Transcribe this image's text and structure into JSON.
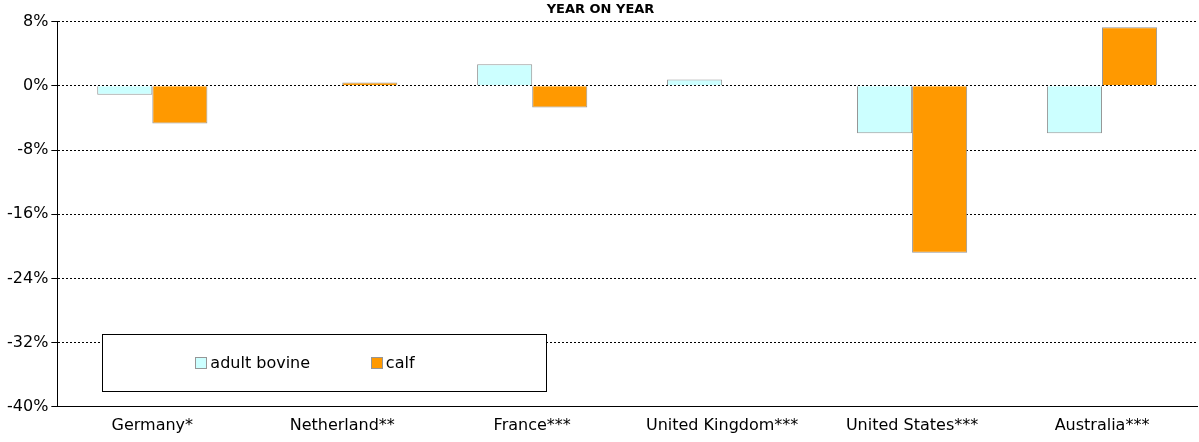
{
  "chart_data": {
    "type": "bar",
    "title": "YEAR ON YEAR",
    "categories": [
      "Germany*",
      "Netherland**",
      "France***",
      "United Kingdom***",
      "United States***",
      "Australia***"
    ],
    "series": [
      {
        "name": "adult bovine",
        "color": "#ccffff",
        "values": [
          -1.1,
          0,
          2.7,
          0.8,
          -5.9,
          -5.9
        ]
      },
      {
        "name": "calf",
        "color": "#ff9900",
        "values": [
          -4.7,
          0.4,
          -2.7,
          0,
          -20.8,
          7.3
        ]
      }
    ],
    "ylim": [
      -40,
      8
    ],
    "yticks": [
      {
        "value": 8,
        "label": "8%"
      },
      {
        "value": 0,
        "label": "0%"
      },
      {
        "value": -8,
        "label": "-8%"
      },
      {
        "value": -16,
        "label": "-16%"
      },
      {
        "value": -24,
        "label": "-24%"
      },
      {
        "value": -32,
        "label": "-32%"
      },
      {
        "value": -40,
        "label": "-40%"
      }
    ],
    "grid": "y",
    "legend": "bottom left"
  }
}
